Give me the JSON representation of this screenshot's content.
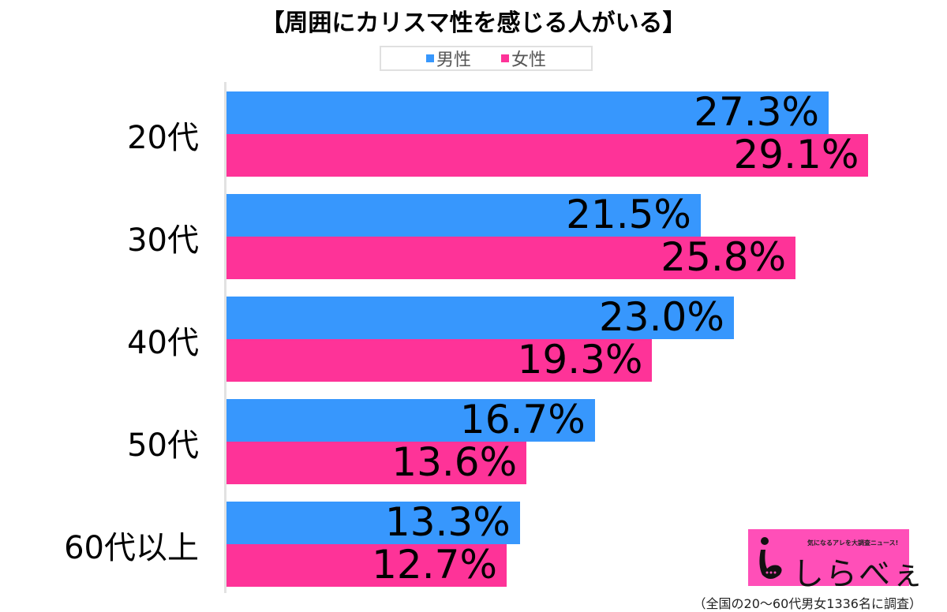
{
  "title": "【周囲にカリスマ性を感じる人がいる】",
  "legend": [
    {
      "label": "男性",
      "color": "#3797fd"
    },
    {
      "label": "女性",
      "color": "#fe3398"
    }
  ],
  "groups": [
    {
      "label": "20代",
      "male": "27.3%",
      "female": "29.1%"
    },
    {
      "label": "30代",
      "male": "21.5%",
      "female": "25.8%"
    },
    {
      "label": "40代",
      "male": "23.0%",
      "female": "19.3%"
    },
    {
      "label": "50代",
      "male": "16.7%",
      "female": "13.6%"
    },
    {
      "label": "60代以上",
      "male": "13.3%",
      "female": "12.7%"
    }
  ],
  "logo": {
    "tagline": "気になるアレを大調査ニュース!",
    "name": "しらべぇ"
  },
  "footnote": "（全国の20〜60代男女1336名に調査）",
  "chart_data": {
    "type": "bar",
    "orientation": "horizontal",
    "title": "【周囲にカリスマ性を感じる人がいる】",
    "categories": [
      "20代",
      "30代",
      "40代",
      "50代",
      "60代以上"
    ],
    "series": [
      {
        "name": "男性",
        "color": "#3797fd",
        "values": [
          27.3,
          21.5,
          23.0,
          16.7,
          13.3
        ]
      },
      {
        "name": "女性",
        "color": "#fe3398",
        "values": [
          29.1,
          25.8,
          19.3,
          13.6,
          12.7
        ]
      }
    ],
    "xlabel": "",
    "ylabel": "",
    "unit": "%",
    "legend_position": "top",
    "grid": false,
    "data_labels": true,
    "note": "（全国の20〜60代男女1336名に調査）"
  }
}
